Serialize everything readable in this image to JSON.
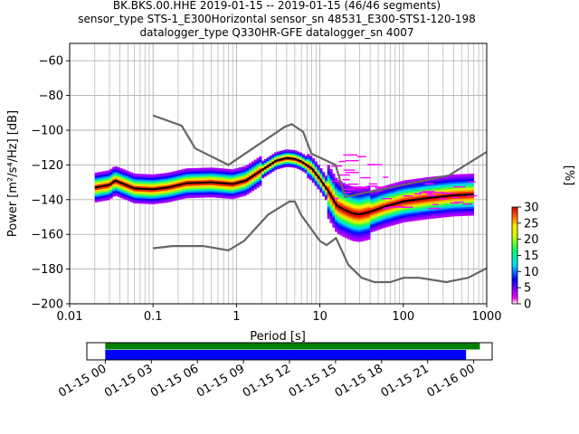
{
  "title_lines": [
    "BK.BKS.00.HHE   2019-01-15 -- 2019-01-15  (46/46 segments)",
    "sensor_type STS-1_E300Horizontal sensor_sn 48531_E300-STS1-120-198",
    "datalogger_type Q330HR-GFE datalogger_sn 4007"
  ],
  "chart_data": [
    {
      "type": "scatter",
      "subtype": "probabilistic-power-spectral-density",
      "xscale": "log",
      "xlabel": "Period [s]",
      "ylabel": "Power [m²/s⁴/Hz] [dB]",
      "xlim": [
        0.01,
        1000
      ],
      "ylim": [
        -200,
        -50
      ],
      "xticks": [
        {
          "value": 0.01,
          "label": "0.01"
        },
        {
          "value": 0.1,
          "label": "0.1"
        },
        {
          "value": 1,
          "label": "1"
        },
        {
          "value": 10,
          "label": "10"
        },
        {
          "value": 100,
          "label": "100"
        },
        {
          "value": 1000,
          "label": "1000"
        }
      ],
      "yticks": [
        {
          "value": -60,
          "label": "−60"
        },
        {
          "value": -80,
          "label": "−80"
        },
        {
          "value": -100,
          "label": "−100"
        },
        {
          "value": -120,
          "label": "−120"
        },
        {
          "value": -140,
          "label": "−140"
        },
        {
          "value": -160,
          "label": "−160"
        },
        {
          "value": -180,
          "label": "−180"
        },
        {
          "value": -200,
          "label": "−200"
        }
      ],
      "grid": true,
      "series": [
        {
          "name": "NHNM",
          "color": "#666666",
          "x": [
            0.1,
            0.22,
            0.32,
            0.8,
            3.8,
            4.6,
            6.3,
            7.9,
            15.4,
            20,
            354.8,
            1000
          ],
          "y": [
            -91.5,
            -97.4,
            -110.5,
            -120,
            -98,
            -96.5,
            -101,
            -113.5,
            -120,
            -138.5,
            -126,
            -112.5
          ]
        },
        {
          "name": "NLNM",
          "color": "#666666",
          "x": [
            0.1,
            0.17,
            0.4,
            0.8,
            1.24,
            2.4,
            4.3,
            5,
            6,
            10,
            12,
            15.6,
            21.9,
            31.6,
            45,
            70,
            101,
            154,
            328,
            600,
            1000
          ],
          "y": [
            -168,
            -166.7,
            -166.7,
            -169.2,
            -163.7,
            -148.6,
            -141.1,
            -141.1,
            -149,
            -163.8,
            -166.2,
            -162.1,
            -177.5,
            -185,
            -187.5,
            -187.5,
            -185,
            -185,
            -187.5,
            -185,
            -179.5
          ]
        },
        {
          "name": "mean",
          "color": "#000000",
          "x": [
            0.02,
            0.03,
            0.035,
            0.06,
            0.1,
            0.15,
            0.25,
            0.5,
            0.9,
            1.3,
            2,
            3,
            4,
            5,
            6,
            8,
            10,
            13,
            16,
            20,
            25,
            30,
            40,
            60,
            100,
            200,
            400,
            700
          ],
          "y": [
            -133,
            -131.5,
            -129,
            -133.5,
            -134,
            -133,
            -130.5,
            -130,
            -131,
            -129,
            -123,
            -117.5,
            -116,
            -116.5,
            -118,
            -122,
            -128,
            -136,
            -143.5,
            -146,
            -148,
            -148.5,
            -147,
            -144,
            -141,
            -139,
            -137.5,
            -137
          ]
        }
      ],
      "colorbar": {
        "label": "[%]",
        "min": 0,
        "max": 30,
        "ticks": [
          {
            "value": 0,
            "label": "0"
          },
          {
            "value": 5,
            "label": "5"
          },
          {
            "value": 10,
            "label": "10"
          },
          {
            "value": 15,
            "label": "15"
          },
          {
            "value": 20,
            "label": "20"
          },
          {
            "value": 25,
            "label": "25"
          },
          {
            "value": 30,
            "label": "30"
          }
        ]
      }
    },
    {
      "type": "bar",
      "subtype": "data-coverage-timeline",
      "time_range": [
        "2019-01-15 00:00",
        "2019-01-16 00:00"
      ],
      "xticks": [
        "01-15 00",
        "01-15 03",
        "01-15 06",
        "01-15 09",
        "01-15 12",
        "01-15 15",
        "01-15 18",
        "01-15 21",
        "01-16 00"
      ],
      "xlim_hours": [
        -1.2,
        25.2
      ],
      "series": [
        {
          "name": "psd segments",
          "color": "#008000",
          "start_hour": 0,
          "end_hour": 24.4
        },
        {
          "name": "data availability",
          "color": "#0000ff",
          "start_hour": 0,
          "end_hour": 23.5
        }
      ]
    }
  ]
}
